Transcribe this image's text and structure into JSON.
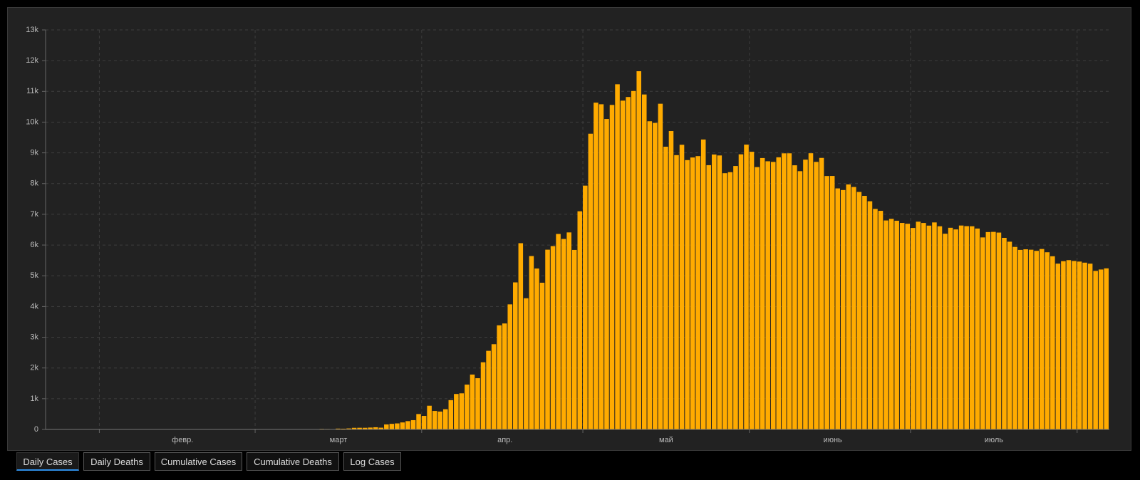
{
  "chart_data": {
    "type": "bar",
    "color": "#ffab00",
    "categories": [
      null,
      null,
      null,
      null,
      null,
      null,
      null,
      null,
      null,
      null,
      null,
      null,
      null,
      null,
      null,
      null,
      null,
      null,
      null,
      null,
      null,
      null,
      null,
      null,
      null,
      "февр.",
      null,
      null,
      null,
      null,
      null,
      null,
      null,
      null,
      null,
      null,
      null,
      null,
      null,
      null,
      null,
      null,
      null,
      null,
      null,
      null,
      null,
      null,
      null,
      null,
      null,
      null,
      null,
      null,
      "март",
      null,
      null,
      null,
      null,
      null,
      null,
      null,
      null,
      null,
      null,
      null,
      null,
      null,
      null,
      null,
      null,
      null,
      null,
      null,
      null,
      null,
      null,
      null,
      null,
      null,
      null,
      null,
      null,
      null,
      null,
      "апр.",
      null,
      null,
      null,
      null,
      null,
      null,
      null,
      null,
      null,
      null,
      null,
      null,
      null,
      null,
      null,
      null,
      null,
      null,
      null,
      null,
      null,
      null,
      null,
      null,
      null,
      null,
      null,
      null,
      null,
      "май",
      null,
      null,
      null,
      null,
      null,
      null,
      null,
      null,
      null,
      null,
      null,
      null,
      null,
      null,
      null,
      null,
      null,
      null,
      null,
      null,
      null,
      null,
      null,
      null,
      null,
      null,
      null,
      null,
      null,
      null,
      "июнь",
      null,
      null,
      null,
      null,
      null,
      null,
      null,
      null,
      null,
      null,
      null,
      null,
      null,
      null,
      null,
      null,
      null,
      null,
      null,
      null,
      null,
      null,
      null,
      null,
      null,
      null,
      null,
      null,
      null,
      "июль",
      null,
      null,
      null,
      null,
      null,
      null,
      null,
      null,
      null,
      null,
      null,
      null,
      null,
      null,
      null,
      null,
      null,
      null,
      null,
      null,
      null
    ],
    "values": [
      0,
      0,
      0,
      0,
      0,
      0,
      0,
      0,
      0,
      2,
      0,
      0,
      0,
      0,
      0,
      0,
      0,
      0,
      0,
      0,
      0,
      0,
      0,
      0,
      0,
      0,
      0,
      0,
      0,
      0,
      0,
      0,
      0,
      0,
      0,
      0,
      0,
      0,
      0,
      0,
      1,
      0,
      0,
      0,
      1,
      6,
      0,
      0,
      7,
      3,
      8,
      17,
      14,
      4,
      27,
      24,
      33,
      52,
      54,
      53,
      61,
      71,
      57,
      163,
      182,
      196,
      228,
      270,
      302,
      501,
      440,
      771,
      601,
      582,
      658,
      954,
      1154,
      1175,
      1459,
      1786,
      1667,
      2186,
      2558,
      2774,
      3388,
      3448,
      4070,
      4785,
      6060,
      4268,
      5642,
      5236,
      4774,
      5849,
      5966,
      6361,
      6198,
      6411,
      5841,
      7099,
      7933,
      9623,
      10633,
      10581,
      10102,
      10559,
      11231,
      10699,
      10817,
      11012,
      11656,
      10899,
      10028,
      9974,
      10598,
      9200,
      9709,
      8926,
      9263,
      8764,
      8849,
      8894,
      9434,
      8599,
      8946,
      8915,
      8338,
      8371,
      8572,
      8952,
      9268,
      9035,
      8536,
      8831,
      8726,
      8705,
      8855,
      8984,
      8985,
      8595,
      8404,
      8779,
      8987,
      8706,
      8835,
      8246,
      8248,
      7843,
      7790,
      7972,
      7889,
      7728,
      7600,
      7425,
      7176,
      7113,
      6800,
      6852,
      6791,
      6719,
      6693,
      6556,
      6760,
      6718,
      6632,
      6736,
      6611,
      6368,
      6562,
      6509,
      6635,
      6615,
      6611,
      6537,
      6248,
      6422,
      6428,
      6406,
      6234,
      6109,
      5940,
      5842,
      5862,
      5848,
      5811,
      5871,
      5765,
      5635,
      5395,
      5475,
      5509,
      5482,
      5462,
      5427,
      5394,
      5159,
      5204,
      5241
    ],
    "ylim": [
      0,
      13000
    ],
    "yticks": [
      0,
      {
        "value": 1000,
        "label": "1k"
      },
      {
        "value": 2000,
        "label": "2k"
      },
      {
        "value": 3000,
        "label": "3k"
      },
      {
        "value": 4000,
        "label": "4k"
      },
      {
        "value": 5000,
        "label": "5k"
      },
      {
        "value": 6000,
        "label": "6k"
      },
      {
        "value": 7000,
        "label": "7k"
      },
      {
        "value": 8000,
        "label": "8k"
      },
      {
        "value": 9000,
        "label": "9k"
      },
      {
        "value": 10000,
        "label": "10k"
      },
      {
        "value": 11000,
        "label": "11k"
      },
      {
        "value": 12000,
        "label": "12k"
      },
      {
        "value": 13000,
        "label": "13k"
      }
    ],
    "grid": true
  },
  "tabs": [
    "Daily Cases",
    "Daily Deaths",
    "Cumulative Cases",
    "Cumulative Deaths",
    "Log Cases"
  ],
  "active_tab": 0
}
